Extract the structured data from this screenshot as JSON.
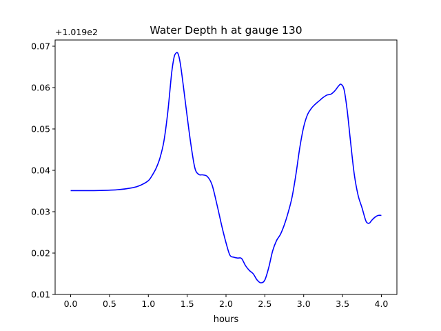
{
  "chart_data": {
    "type": "line",
    "title": "Water Depth h at gauge 130",
    "xlabel": "hours",
    "ylabel": "",
    "y_offset_label": "+1.019e2",
    "xlim": [
      -0.2,
      4.2
    ],
    "ylim": [
      0.01,
      0.0715
    ],
    "x_ticks": [
      0.0,
      0.5,
      1.0,
      1.5,
      2.0,
      2.5,
      3.0,
      3.5,
      4.0
    ],
    "x_tick_labels": [
      "0.0",
      "0.5",
      "1.0",
      "1.5",
      "2.0",
      "2.5",
      "3.0",
      "3.5",
      "4.0"
    ],
    "y_ticks": [
      0.01,
      0.02,
      0.03,
      0.04,
      0.05,
      0.06,
      0.07
    ],
    "y_tick_labels": [
      "0.01",
      "0.02",
      "0.03",
      "0.04",
      "0.05",
      "0.06",
      "0.07"
    ],
    "grid": false,
    "line_color": "#0000ff",
    "series": [
      {
        "x": [
          0.0,
          0.3,
          0.6,
          0.8,
          0.9,
          1.0,
          1.05,
          1.1,
          1.15,
          1.2,
          1.25,
          1.3,
          1.33,
          1.35,
          1.38,
          1.41,
          1.45,
          1.5,
          1.55,
          1.6,
          1.65,
          1.7,
          1.76,
          1.82,
          1.88,
          1.95,
          2.0,
          2.05,
          2.1,
          2.15,
          2.2,
          2.25,
          2.3,
          2.35,
          2.4,
          2.45,
          2.5,
          2.55,
          2.6,
          2.65,
          2.7,
          2.75,
          2.8,
          2.85,
          2.9,
          2.95,
          3.0,
          3.05,
          3.1,
          3.15,
          3.2,
          3.25,
          3.3,
          3.35,
          3.4,
          3.45,
          3.48,
          3.52,
          3.56,
          3.6,
          3.65,
          3.7,
          3.75,
          3.8,
          3.83,
          3.85,
          3.88,
          3.92,
          3.96,
          4.0
        ],
        "y": [
          0.0351,
          0.0351,
          0.0353,
          0.0358,
          0.0364,
          0.0375,
          0.0388,
          0.0405,
          0.043,
          0.047,
          0.054,
          0.0635,
          0.0672,
          0.0682,
          0.0683,
          0.066,
          0.0605,
          0.053,
          0.046,
          0.0405,
          0.039,
          0.0389,
          0.0385,
          0.0365,
          0.032,
          0.0262,
          0.0225,
          0.0195,
          0.019,
          0.0188,
          0.0187,
          0.017,
          0.0158,
          0.015,
          0.0135,
          0.0128,
          0.0135,
          0.0165,
          0.0205,
          0.023,
          0.0245,
          0.0268,
          0.0298,
          0.0335,
          0.039,
          0.0455,
          0.0505,
          0.0535,
          0.055,
          0.056,
          0.0568,
          0.0576,
          0.0582,
          0.0584,
          0.0592,
          0.0604,
          0.0608,
          0.0595,
          0.0545,
          0.0475,
          0.0392,
          0.034,
          0.031,
          0.0278,
          0.0272,
          0.0273,
          0.028,
          0.0287,
          0.0291,
          0.0291
        ]
      }
    ]
  }
}
